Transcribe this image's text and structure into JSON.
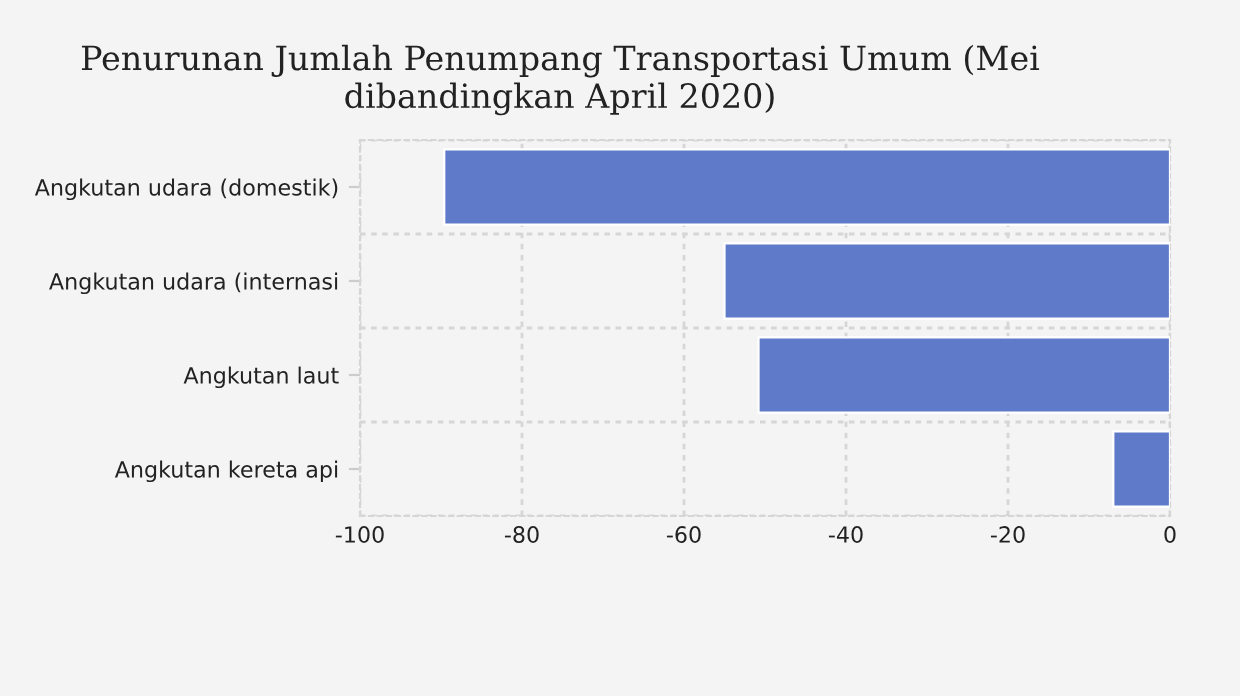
{
  "chart_data": {
    "type": "bar",
    "orientation": "horizontal",
    "title": "Penurunan Jumlah Penumpang Transportasi Umum (Mei dibandingkan April 2020)",
    "categories": [
      "Angkutan udara (domestik)",
      "Angkutan udara (internasi",
      "Angkutan laut",
      "Angkutan kereta api"
    ],
    "values": [
      -89.6,
      -55.0,
      -50.8,
      -7.0
    ],
    "color": "#5f7ac9",
    "xlim": [
      -100,
      0
    ],
    "xticks": [
      -100,
      -80,
      -60,
      -40,
      -20,
      0
    ],
    "grid": true
  }
}
